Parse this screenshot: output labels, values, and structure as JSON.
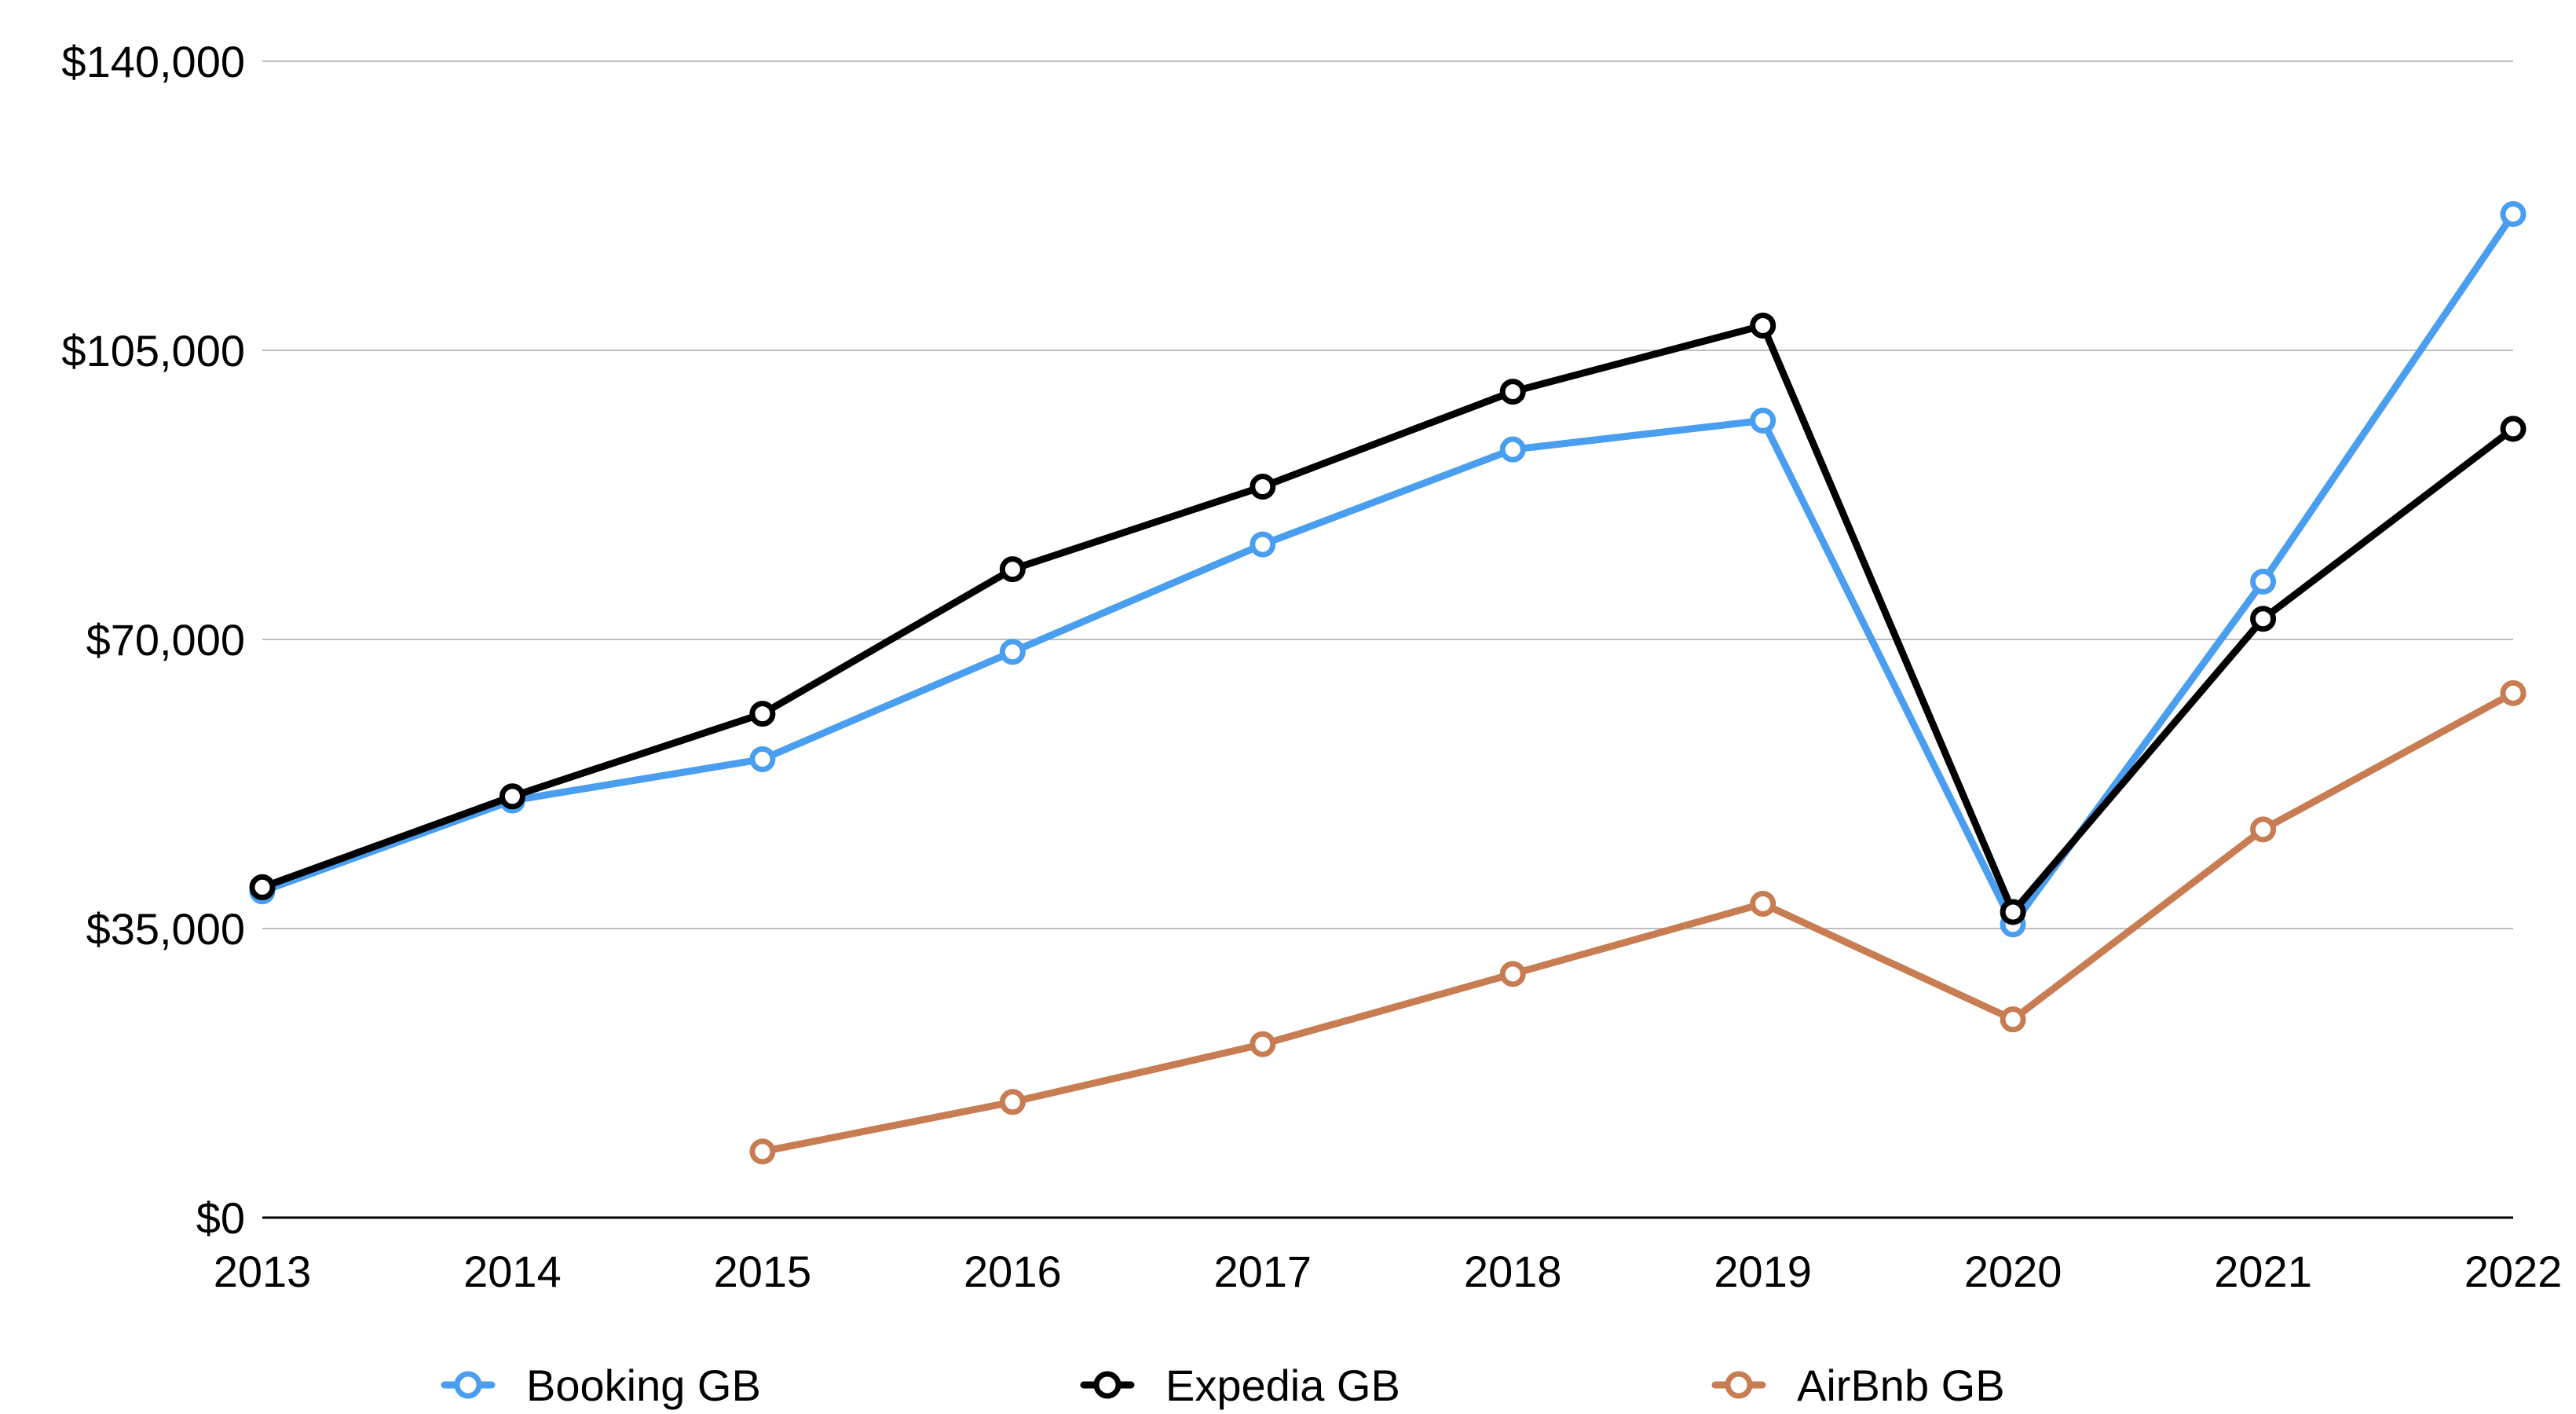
{
  "chart_data": {
    "type": "line",
    "title": "",
    "xlabel": "",
    "ylabel": "",
    "categories": [
      "2013",
      "2014",
      "2015",
      "2016",
      "2017",
      "2018",
      "2019",
      "2020",
      "2021",
      "2022"
    ],
    "ylim": [
      0,
      140000
    ],
    "yticks": [
      0,
      35000,
      70000,
      105000,
      140000
    ],
    "ytick_labels": [
      "$0",
      "$35,000",
      "$70,000",
      "$105,000",
      "$140,000"
    ],
    "grid": true,
    "legend_position": "bottom",
    "series": [
      {
        "name": "Booking GB",
        "color": "#4a9ef0",
        "values": [
          39500,
          50500,
          55500,
          68500,
          81500,
          93000,
          96500,
          35500,
          77000,
          121500
        ]
      },
      {
        "name": "Expedia GB",
        "color": "#000000",
        "values": [
          40000,
          51000,
          61000,
          78500,
          88500,
          100000,
          108000,
          37000,
          72500,
          95500
        ]
      },
      {
        "name": "AirBnb GB",
        "color": "#c87c52",
        "values": [
          null,
          null,
          8000,
          14000,
          21000,
          29500,
          38000,
          24000,
          47000,
          63500
        ]
      }
    ]
  }
}
